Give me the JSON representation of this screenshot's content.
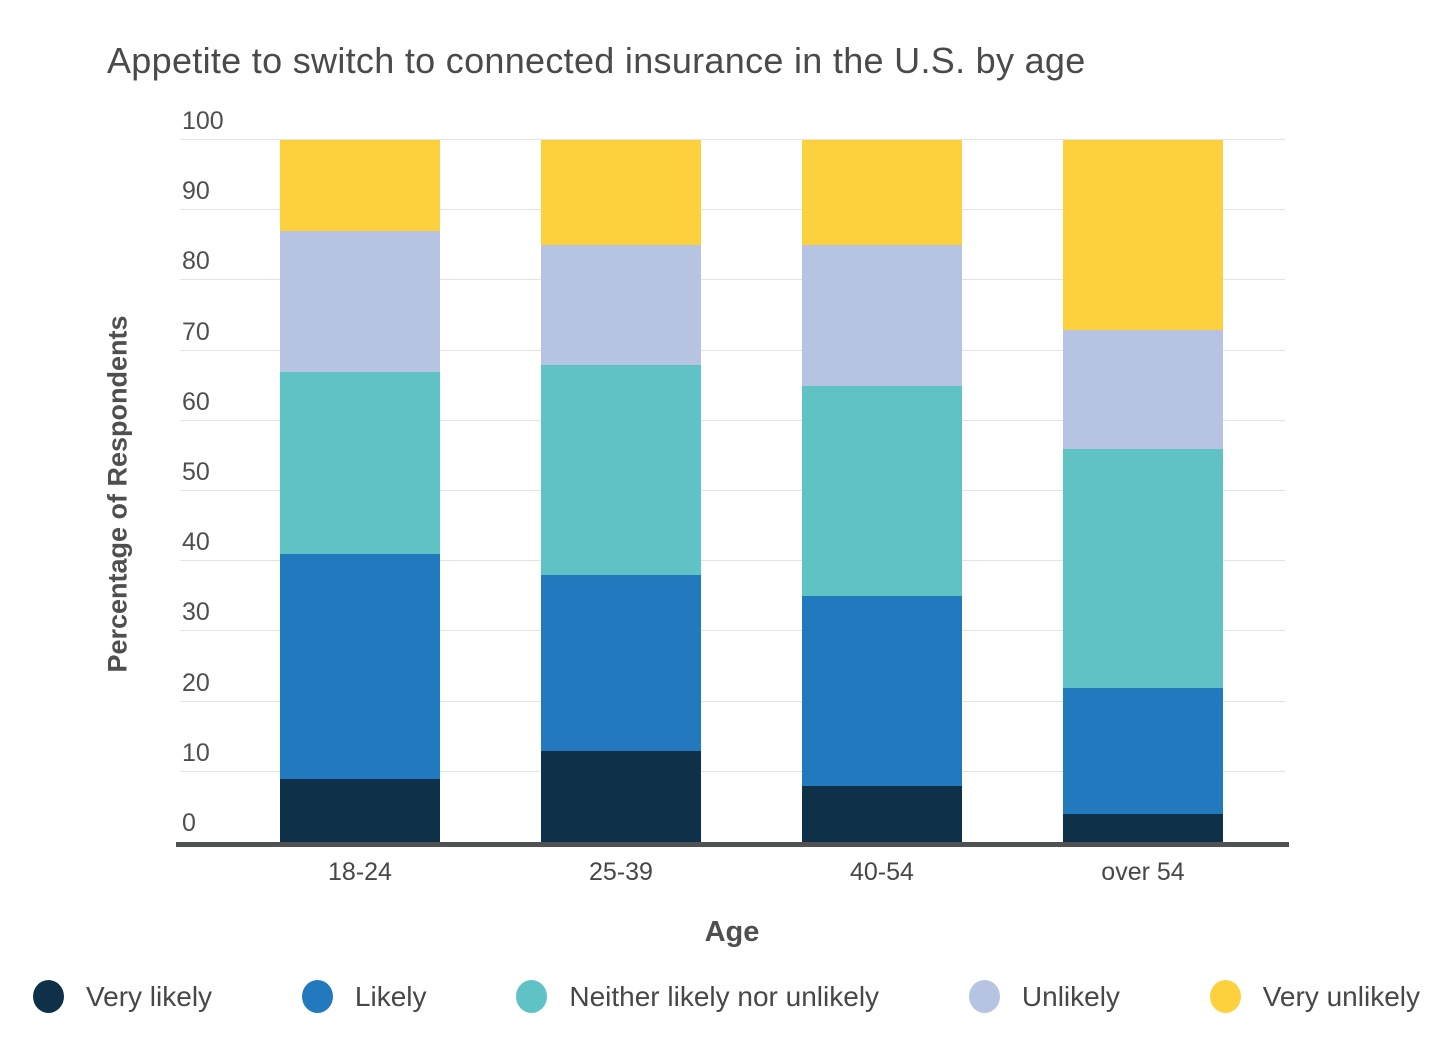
{
  "chart_data": {
    "type": "bar",
    "stacked": true,
    "title": "Appetite to switch to connected insurance in the U.S. by age",
    "xlabel": "Age",
    "ylabel": "Percentage of Respondents",
    "categories": [
      "18-24",
      "25-39",
      "40-54",
      "over 54"
    ],
    "series": [
      {
        "name": "Very likely",
        "color": "#0f3049",
        "values": [
          9,
          13,
          8,
          4
        ]
      },
      {
        "name": "Likely",
        "color": "#2279be",
        "values": [
          32,
          25,
          27,
          18
        ]
      },
      {
        "name": "Neither likely nor unlikely",
        "color": "#5fc3c5",
        "values": [
          26,
          30,
          30,
          34
        ]
      },
      {
        "name": "Unlikely",
        "color": "#b6c3e2",
        "values": [
          20,
          17,
          20,
          17
        ]
      },
      {
        "name": "Very unlikely",
        "color": "#fdd13d",
        "values": [
          13,
          15,
          15,
          27
        ]
      }
    ],
    "ylim": [
      0,
      100
    ],
    "ytick_step": 10,
    "yticks": [
      "0",
      "10",
      "20",
      "30",
      "40",
      "50",
      "60",
      "70",
      "80",
      "90",
      "100"
    ],
    "grid": true,
    "legend_position": "bottom"
  },
  "colors": {
    "grid": "#e3e3e3",
    "axis_line": "#505153",
    "text": "#4a4a4a"
  }
}
